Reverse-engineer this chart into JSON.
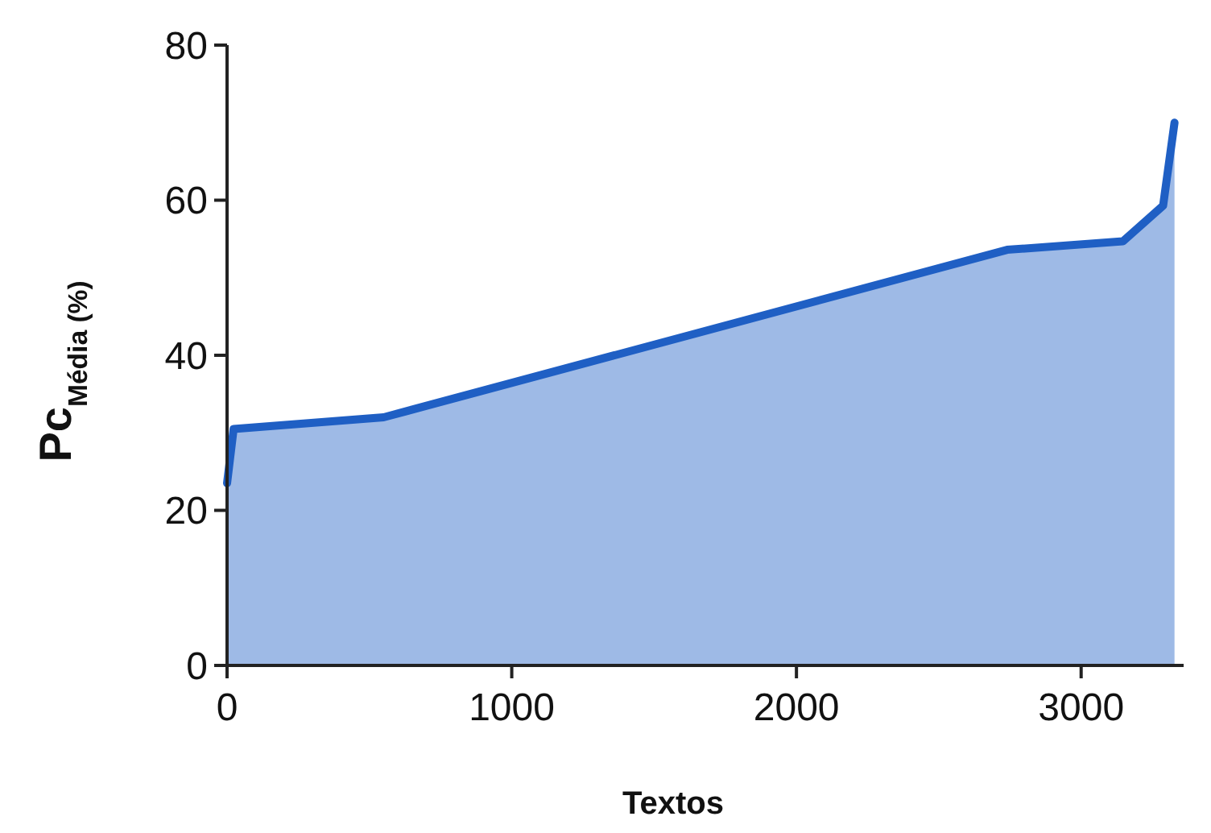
{
  "chart_data": {
    "type": "area",
    "xlabel": "Textos",
    "ylabel": "Pc$_{Média (%)}$",
    "series": [
      {
        "color": "#1f5fc4",
        "x": [
          0,
          23,
          550,
          2740,
          3147,
          3288,
          3328
        ],
        "values": [
          23.5,
          30.5,
          32,
          53.6,
          54.7,
          59.3,
          70
        ]
      }
    ],
    "xlim": [
      0,
      3360
    ],
    "xticks": [
      0,
      1000,
      2000,
      3000
    ],
    "ylim": [
      0,
      80
    ],
    "yticks": [
      0,
      20,
      40,
      60,
      80
    ],
    "grid": false
  }
}
